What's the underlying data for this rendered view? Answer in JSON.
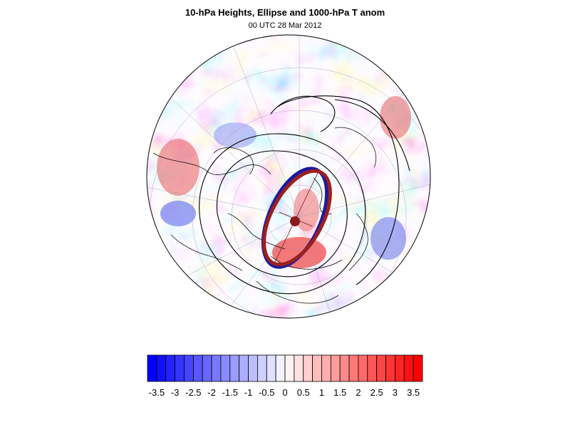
{
  "title": "10-hPa Heights, Ellipse and 1000-hPa T anom",
  "subtitle": "00 UTC 28 Mar 2012",
  "colorbar": {
    "labels": [
      "-3.5",
      "-3",
      "-2.5",
      "-2",
      "-1.5",
      "-1",
      "-0.5",
      "0",
      "0.5",
      "1",
      "1.5",
      "2",
      "2.5",
      "3",
      "3.5"
    ],
    "min": -3.5,
    "max": 3.5,
    "step": 0.25,
    "negative_color": "#0000ff",
    "positive_color": "#ff0000",
    "neutral_color": "#ffffff"
  },
  "map": {
    "projection": "north-polar-stereographic",
    "ellipse_colors": [
      "#1a1aa0",
      "#9a2020"
    ],
    "contour_color": "#000000",
    "pole_marker_color": "#8b1a1a"
  }
}
